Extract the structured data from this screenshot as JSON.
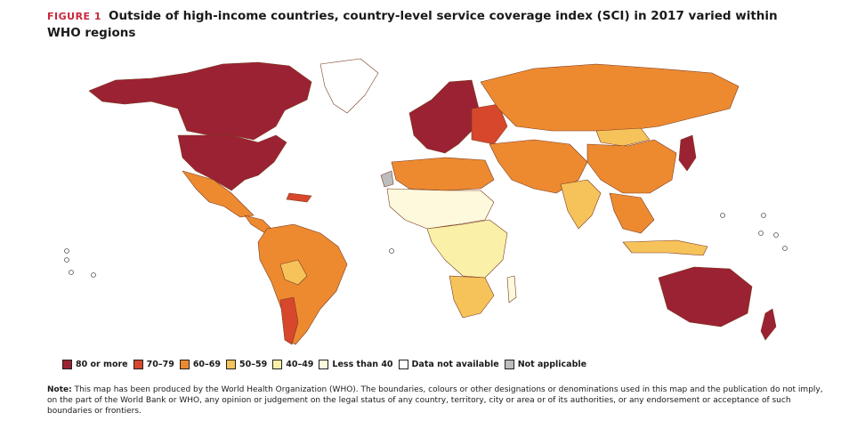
{
  "header": {
    "figure_label": "FIGURE 1",
    "title": "Outside of high-income countries, country-level service coverage index (SCI) in 2017 varied within WHO regions"
  },
  "legend": [
    {
      "label": "80 or more",
      "color": "#9b2232"
    },
    {
      "label": "70–79",
      "color": "#d6472c"
    },
    {
      "label": "60–69",
      "color": "#ed8a30"
    },
    {
      "label": "50–59",
      "color": "#f6c35a"
    },
    {
      "label": "40–49",
      "color": "#faf0a8"
    },
    {
      "label": "Less than 40",
      "color": "#fdf9dc"
    },
    {
      "label": "Data not available",
      "color": "#ffffff"
    },
    {
      "label": "Not applicable",
      "color": "#bdbdbd"
    }
  ],
  "note": {
    "label": "Note:",
    "text": "This map has been produced by the World Health Organization (WHO). The boundaries, colours or other designations or denominations used in this map and the publication do not imply, on the part of the World Bank or WHO, any opinion or judgement on the legal status of any country, territory, city or area or of its authorities, or any endorsement or acceptance of such boundaries or frontiers."
  },
  "colors": {
    "c80": "#9b2232",
    "c70": "#d6472c",
    "c60": "#ed8a30",
    "c50": "#f6c35a",
    "c40": "#faf0a8",
    "clt40": "#fdf9dc",
    "na": "#bdbdbd",
    "border": "#8a4a2a"
  }
}
